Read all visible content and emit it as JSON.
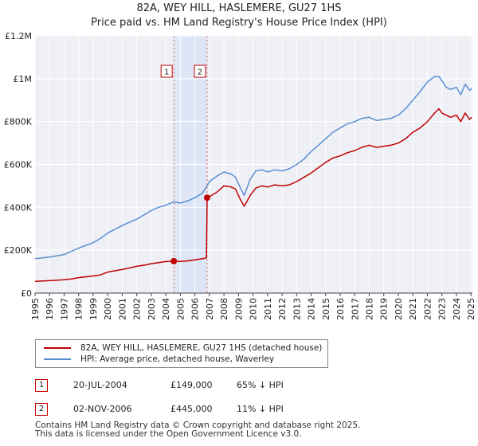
{
  "header": {
    "title": "82A, WEY HILL, HASLEMERE, GU27 1HS",
    "subtitle": "Price paid vs. HM Land Registry's House Price Index (HPI)"
  },
  "chart_data": {
    "type": "line",
    "title": "82A, WEY HILL, HASLEMERE, GU27 1HS",
    "subtitle": "Price paid vs. HM Land Registry's House Price Index (HPI)",
    "xlim": [
      1995,
      2025.1
    ],
    "ylim": [
      0,
      1200000
    ],
    "x_ticks": [
      1995,
      1996,
      1997,
      1998,
      1999,
      2000,
      2001,
      2002,
      2003,
      2004,
      2005,
      2006,
      2007,
      2008,
      2009,
      2010,
      2011,
      2012,
      2013,
      2014,
      2015,
      2016,
      2017,
      2018,
      2019,
      2020,
      2021,
      2022,
      2023,
      2024,
      2025
    ],
    "x_tick_labels": [
      "1995",
      "1996",
      "1997",
      "1998",
      "1999",
      "2000",
      "2001",
      "2002",
      "2003",
      "2004",
      "2005",
      "2006",
      "2007",
      "2008",
      "2009",
      "2010",
      "2011",
      "2012",
      "2013",
      "2014",
      "2015",
      "2016",
      "2017",
      "2018",
      "2019",
      "2020",
      "2021",
      "2022",
      "2023",
      "2024",
      "2025"
    ],
    "y_ticks": [
      0,
      200000,
      400000,
      600000,
      800000,
      1000000,
      1200000
    ],
    "y_tick_labels": [
      "£0",
      "£200K",
      "£400K",
      "£600K",
      "£800K",
      "£1M",
      "£1.2M"
    ],
    "grid": true,
    "shaded_range": [
      2004.55,
      2006.84
    ],
    "series": [
      {
        "name": "82A, WEY HILL, HASLEMERE, GU27 1HS (detached house)",
        "color": "#c00000",
        "x": [
          1995.0,
          1996.0,
          1997.0,
          1997.5,
          1998.0,
          1999.0,
          1999.5,
          2000.0,
          2001.0,
          2002.0,
          2002.5,
          2003.0,
          2003.5,
          2004.0,
          2004.55,
          2005.0,
          2005.5,
          2006.0,
          2006.5,
          2006.8,
          2006.84,
          2007.0,
          2007.5,
          2008.0,
          2008.5,
          2008.8,
          2009.1,
          2009.4,
          2009.8,
          2010.2,
          2010.6,
          2011.0,
          2011.5,
          2012.0,
          2012.5,
          2013.0,
          2013.5,
          2014.0,
          2014.5,
          2015.0,
          2015.5,
          2016.0,
          2016.5,
          2017.0,
          2017.5,
          2018.0,
          2018.5,
          2019.0,
          2019.5,
          2020.0,
          2020.5,
          2021.0,
          2021.5,
          2022.0,
          2022.5,
          2022.8,
          2023.0,
          2023.3,
          2023.6,
          2024.0,
          2024.3,
          2024.6,
          2024.9,
          2025.05
        ],
        "y": [
          55000,
          58000,
          62000,
          66000,
          72000,
          80000,
          85000,
          98000,
          110000,
          125000,
          130000,
          137000,
          142000,
          147000,
          149000,
          148000,
          150000,
          155000,
          160000,
          165000,
          445000,
          450000,
          470000,
          500000,
          495000,
          485000,
          440000,
          405000,
          455000,
          490000,
          500000,
          495000,
          505000,
          500000,
          505000,
          520000,
          540000,
          560000,
          585000,
          610000,
          630000,
          640000,
          655000,
          665000,
          680000,
          690000,
          680000,
          685000,
          690000,
          700000,
          720000,
          750000,
          770000,
          800000,
          840000,
          860000,
          840000,
          830000,
          820000,
          830000,
          800000,
          840000,
          810000,
          820000
        ]
      },
      {
        "name": "HPI: Average price, detached house, Waverley",
        "color": "#5b8fd0",
        "x": [
          1995.0,
          1996.0,
          1997.0,
          1997.5,
          1998.0,
          1999.0,
          1999.5,
          2000.0,
          2001.0,
          2002.0,
          2002.5,
          2003.0,
          2003.5,
          2004.0,
          2004.55,
          2005.0,
          2005.5,
          2006.0,
          2006.5,
          2006.84,
          2007.0,
          2007.5,
          2008.0,
          2008.5,
          2008.8,
          2009.1,
          2009.4,
          2009.8,
          2010.2,
          2010.6,
          2011.0,
          2011.5,
          2012.0,
          2012.5,
          2013.0,
          2013.5,
          2014.0,
          2014.5,
          2015.0,
          2015.5,
          2016.0,
          2016.5,
          2017.0,
          2017.5,
          2018.0,
          2018.5,
          2019.0,
          2019.5,
          2020.0,
          2020.5,
          2021.0,
          2021.5,
          2022.0,
          2022.5,
          2022.8,
          2023.0,
          2023.3,
          2023.6,
          2024.0,
          2024.3,
          2024.6,
          2024.9,
          2025.05
        ],
        "y": [
          160000,
          168000,
          180000,
          195000,
          210000,
          235000,
          255000,
          280000,
          315000,
          345000,
          365000,
          385000,
          400000,
          410000,
          425000,
          420000,
          430000,
          445000,
          465000,
          500000,
          520000,
          545000,
          565000,
          555000,
          540000,
          495000,
          455000,
          530000,
          570000,
          575000,
          565000,
          575000,
          570000,
          580000,
          600000,
          625000,
          660000,
          690000,
          720000,
          750000,
          770000,
          790000,
          800000,
          815000,
          820000,
          805000,
          810000,
          815000,
          830000,
          860000,
          900000,
          940000,
          985000,
          1010000,
          1010000,
          990000,
          960000,
          950000,
          960000,
          925000,
          975000,
          945000,
          955000
        ]
      }
    ],
    "sales": [
      {
        "label": "1",
        "x": 2004.55,
        "y": 149000
      },
      {
        "label": "2",
        "x": 2006.84,
        "y": 445000
      }
    ]
  },
  "legend": {
    "entries": [
      {
        "label": "82A, WEY HILL, HASLEMERE, GU27 1HS (detached house)",
        "color": "#c00000"
      },
      {
        "label": "HPI: Average price, detached house, Waverley",
        "color": "#5b8fd0"
      }
    ]
  },
  "sales_table": [
    {
      "num": "1",
      "date": "20-JUL-2004",
      "price": "£149,000",
      "hpi": "65% ↓ HPI"
    },
    {
      "num": "2",
      "date": "02-NOV-2006",
      "price": "£445,000",
      "hpi": "11% ↓ HPI"
    }
  ],
  "footer": {
    "line1": "Contains HM Land Registry data © Crown copyright and database right 2025.",
    "line2": "This data is licensed under the Open Government Licence v3.0."
  }
}
